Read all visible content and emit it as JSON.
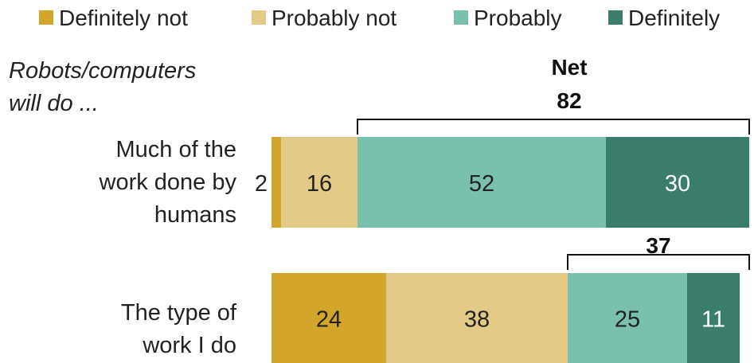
{
  "chart_data": {
    "type": "bar",
    "orientation": "horizontal",
    "stacked": true,
    "stub_label": [
      "Robots/computers",
      "will do ..."
    ],
    "categories": [
      [
        "Much of the",
        "work done by",
        "humans"
      ],
      [
        "The type of",
        "work I do"
      ]
    ],
    "series": [
      {
        "name": "Definitely not",
        "values": [
          2,
          24
        ],
        "color": "#d4a52b"
      },
      {
        "name": "Probably not",
        "values": [
          16,
          38
        ],
        "color": "#e3ca87"
      },
      {
        "name": "Probably",
        "values": [
          52,
          25
        ],
        "color": "#79c0af"
      },
      {
        "name": "Definitely",
        "values": [
          30,
          11
        ],
        "color": "#3a7d6c"
      }
    ],
    "value_labels": [
      [
        "2",
        "16",
        "52",
        "30"
      ],
      [
        "24",
        "38",
        "25",
        "11"
      ]
    ],
    "net": {
      "title": "Net",
      "values": [
        "82",
        "37"
      ]
    },
    "xlim": [
      0,
      100
    ],
    "legend_position": "top",
    "grid": false
  }
}
